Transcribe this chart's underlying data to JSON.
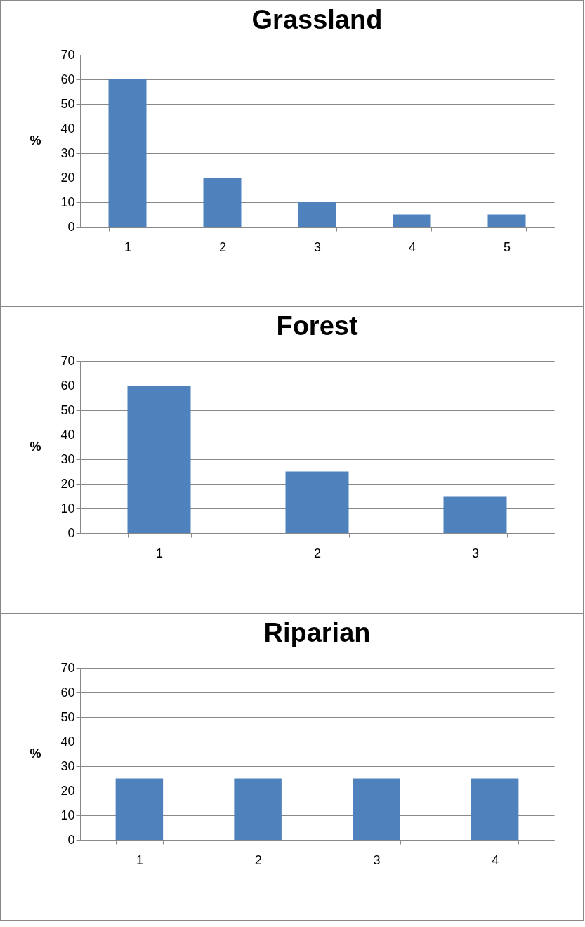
{
  "chart_data": [
    {
      "type": "bar",
      "title": "Grassland",
      "ylabel": "%",
      "categories": [
        "1",
        "2",
        "3",
        "4",
        "5"
      ],
      "values": [
        60,
        20,
        10,
        5,
        5
      ],
      "color": "#4f81bd",
      "ylim": [
        0,
        70
      ],
      "yticks": [
        0,
        10,
        20,
        30,
        40,
        50,
        60,
        70
      ],
      "grid": "y"
    },
    {
      "type": "bar",
      "title": "Forest",
      "ylabel": "%",
      "categories": [
        "1",
        "2",
        "3"
      ],
      "values": [
        60,
        25,
        15
      ],
      "color": "#4f81bd",
      "ylim": [
        0,
        70
      ],
      "yticks": [
        0,
        10,
        20,
        30,
        40,
        50,
        60,
        70
      ],
      "grid": "y"
    },
    {
      "type": "bar",
      "title": "Riparian",
      "ylabel": "%",
      "categories": [
        "1",
        "2",
        "3",
        "4"
      ],
      "values": [
        25,
        25,
        25,
        25
      ],
      "color": "#4f81bd",
      "ylim": [
        0,
        70
      ],
      "yticks": [
        0,
        10,
        20,
        30,
        40,
        50,
        60,
        70
      ],
      "grid": "y"
    }
  ]
}
